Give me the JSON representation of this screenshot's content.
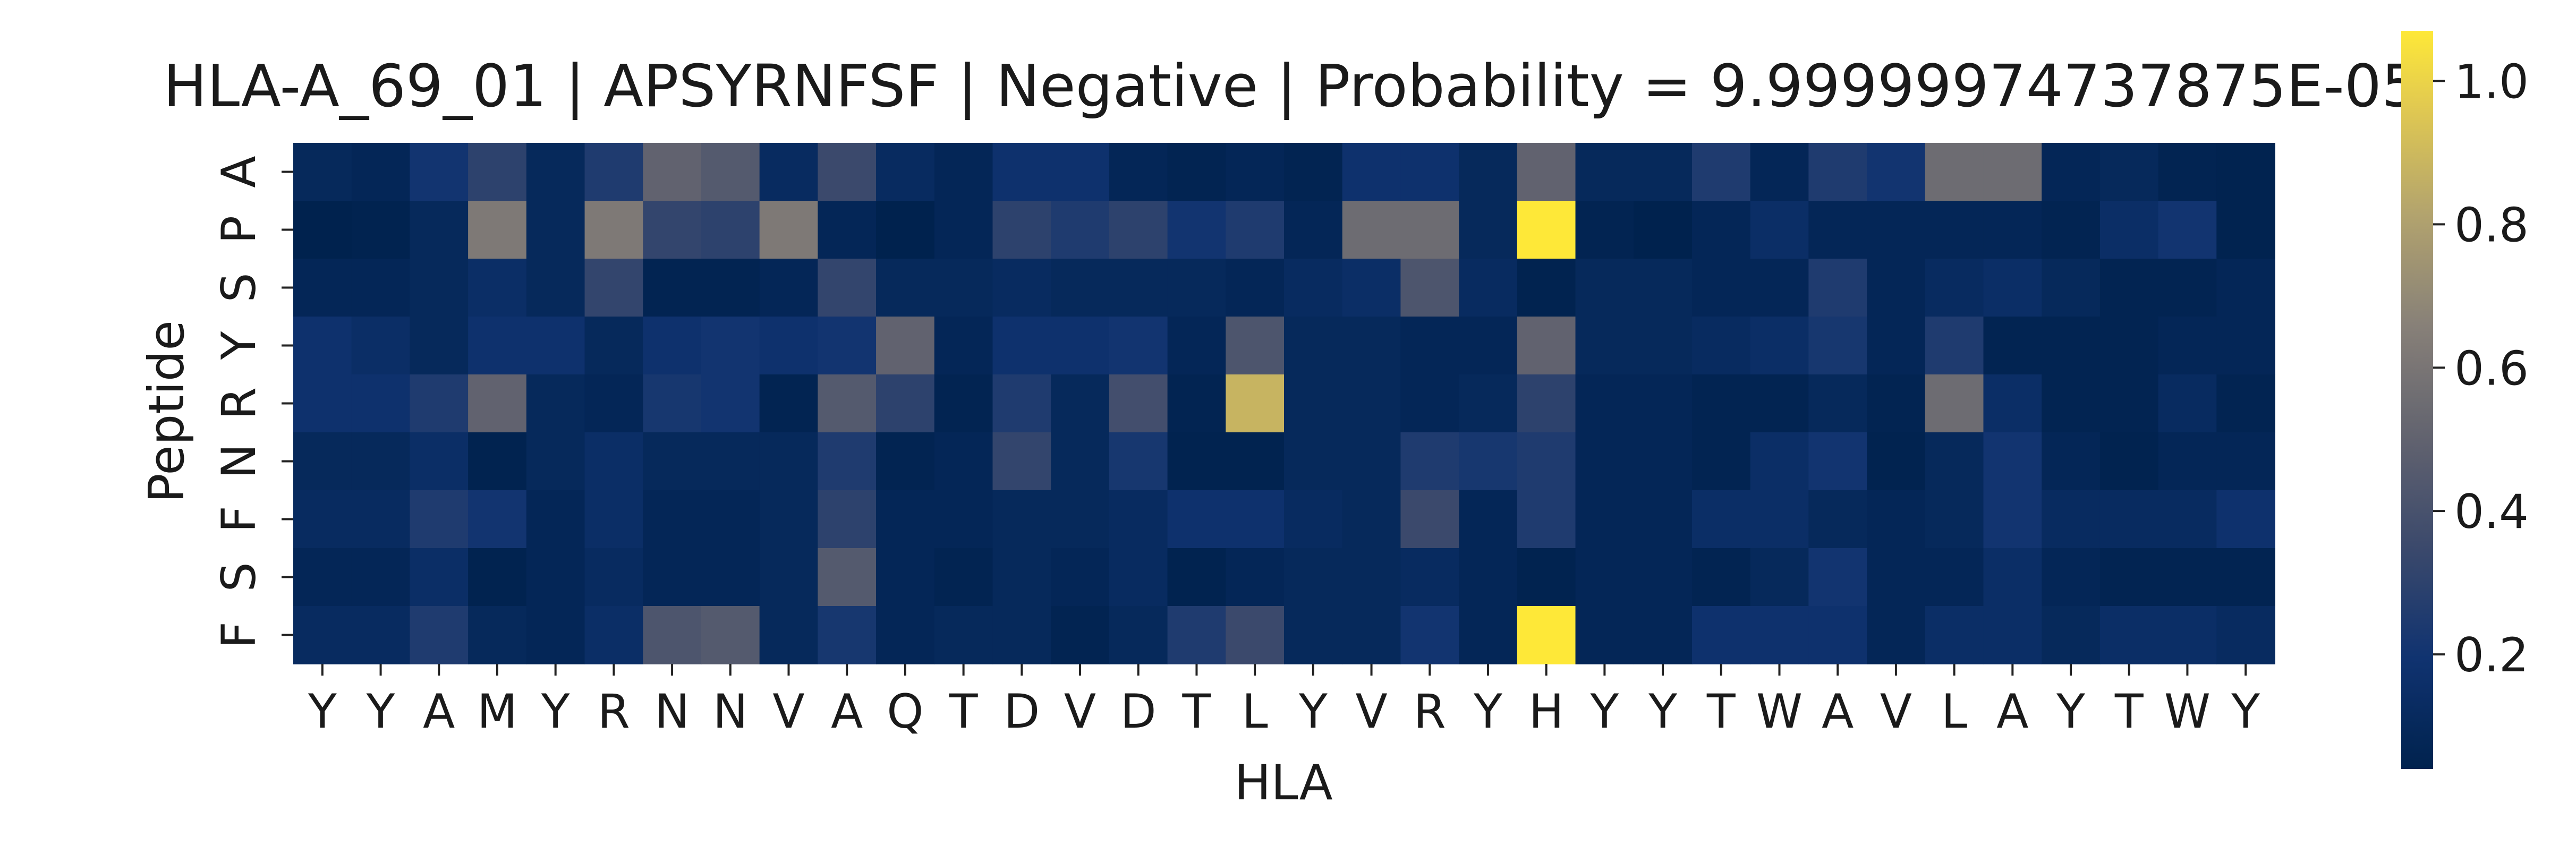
{
  "chart_data": {
    "type": "heatmap",
    "title": "HLA-A_69_01 | APSYRNFSF | Negative | Probability = 9.99999974737875E-05",
    "xlabel": "HLA",
    "ylabel": "Peptide",
    "x_categories": [
      "Y",
      "Y",
      "A",
      "M",
      "Y",
      "R",
      "N",
      "N",
      "V",
      "A",
      "Q",
      "T",
      "D",
      "V",
      "D",
      "T",
      "L",
      "Y",
      "V",
      "R",
      "Y",
      "H",
      "Y",
      "Y",
      "T",
      "W",
      "A",
      "V",
      "L",
      "A",
      "Y",
      "T",
      "W",
      "Y"
    ],
    "y_categories": [
      "A",
      "P",
      "S",
      "Y",
      "R",
      "N",
      "F",
      "S",
      "F"
    ],
    "colorbar": {
      "colormap": "cividis",
      "vmin": 0.04,
      "vmax": 1.07,
      "ticks": [
        "0.2",
        "0.4",
        "0.6",
        "0.8",
        "1.0"
      ]
    },
    "values": [
      [
        0.1,
        0.08,
        0.2,
        0.3,
        0.1,
        0.25,
        0.5,
        0.45,
        0.12,
        0.35,
        0.12,
        0.08,
        0.18,
        0.18,
        0.08,
        0.06,
        0.08,
        0.06,
        0.18,
        0.18,
        0.1,
        0.5,
        0.1,
        0.1,
        0.25,
        0.08,
        0.25,
        0.2,
        0.55,
        0.55,
        0.08,
        0.1,
        0.06,
        0.05
      ],
      [
        0.04,
        0.05,
        0.1,
        0.62,
        0.1,
        0.62,
        0.32,
        0.3,
        0.62,
        0.08,
        0.04,
        0.08,
        0.3,
        0.25,
        0.3,
        0.2,
        0.25,
        0.08,
        0.55,
        0.55,
        0.1,
        1.07,
        0.06,
        0.04,
        0.08,
        0.15,
        0.08,
        0.08,
        0.08,
        0.08,
        0.06,
        0.15,
        0.2,
        0.05
      ],
      [
        0.08,
        0.08,
        0.1,
        0.15,
        0.1,
        0.32,
        0.06,
        0.06,
        0.08,
        0.32,
        0.1,
        0.1,
        0.12,
        0.1,
        0.1,
        0.1,
        0.08,
        0.12,
        0.15,
        0.42,
        0.12,
        0.05,
        0.1,
        0.1,
        0.08,
        0.08,
        0.25,
        0.08,
        0.12,
        0.15,
        0.1,
        0.06,
        0.06,
        0.08
      ],
      [
        0.18,
        0.15,
        0.1,
        0.18,
        0.18,
        0.1,
        0.18,
        0.2,
        0.18,
        0.2,
        0.5,
        0.08,
        0.18,
        0.18,
        0.2,
        0.08,
        0.42,
        0.1,
        0.1,
        0.08,
        0.08,
        0.5,
        0.1,
        0.1,
        0.12,
        0.15,
        0.22,
        0.08,
        0.25,
        0.06,
        0.06,
        0.06,
        0.08,
        0.08
      ],
      [
        0.18,
        0.18,
        0.25,
        0.5,
        0.1,
        0.08,
        0.22,
        0.2,
        0.06,
        0.45,
        0.3,
        0.06,
        0.25,
        0.1,
        0.38,
        0.06,
        0.88,
        0.1,
        0.1,
        0.08,
        0.1,
        0.3,
        0.08,
        0.08,
        0.06,
        0.06,
        0.1,
        0.06,
        0.55,
        0.15,
        0.06,
        0.06,
        0.12,
        0.06
      ],
      [
        0.1,
        0.1,
        0.15,
        0.05,
        0.1,
        0.15,
        0.1,
        0.1,
        0.1,
        0.25,
        0.06,
        0.08,
        0.32,
        0.1,
        0.22,
        0.05,
        0.05,
        0.1,
        0.1,
        0.25,
        0.22,
        0.25,
        0.08,
        0.08,
        0.06,
        0.15,
        0.2,
        0.05,
        0.1,
        0.2,
        0.08,
        0.05,
        0.08,
        0.08
      ],
      [
        0.12,
        0.12,
        0.25,
        0.2,
        0.08,
        0.15,
        0.08,
        0.08,
        0.1,
        0.3,
        0.08,
        0.08,
        0.1,
        0.1,
        0.12,
        0.18,
        0.18,
        0.12,
        0.1,
        0.35,
        0.08,
        0.25,
        0.08,
        0.08,
        0.15,
        0.15,
        0.1,
        0.08,
        0.1,
        0.2,
        0.12,
        0.12,
        0.12,
        0.18
      ],
      [
        0.08,
        0.08,
        0.15,
        0.05,
        0.08,
        0.12,
        0.08,
        0.08,
        0.1,
        0.45,
        0.08,
        0.06,
        0.1,
        0.08,
        0.12,
        0.05,
        0.08,
        0.1,
        0.1,
        0.12,
        0.08,
        0.05,
        0.08,
        0.08,
        0.06,
        0.1,
        0.2,
        0.08,
        0.08,
        0.15,
        0.08,
        0.06,
        0.06,
        0.06
      ],
      [
        0.12,
        0.12,
        0.25,
        0.1,
        0.08,
        0.15,
        0.42,
        0.45,
        0.1,
        0.22,
        0.08,
        0.1,
        0.1,
        0.06,
        0.1,
        0.25,
        0.35,
        0.1,
        0.1,
        0.2,
        0.08,
        1.07,
        0.08,
        0.08,
        0.18,
        0.18,
        0.18,
        0.08,
        0.15,
        0.15,
        0.1,
        0.15,
        0.15,
        0.12
      ]
    ]
  }
}
